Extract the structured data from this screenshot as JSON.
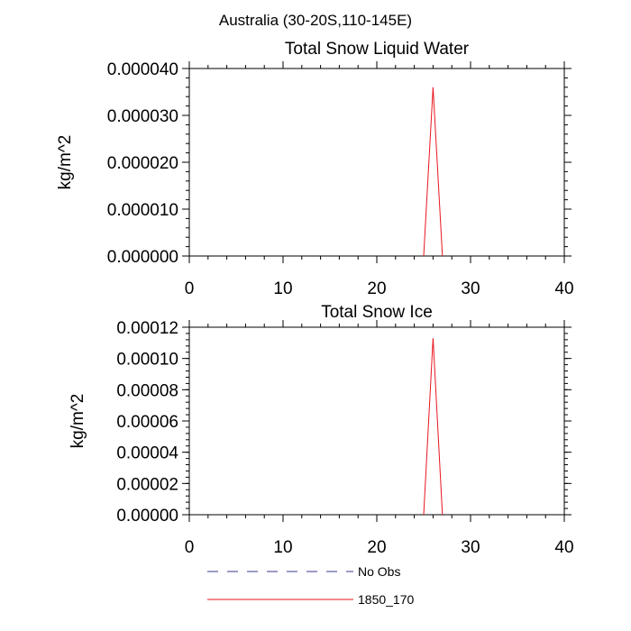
{
  "suptitle": "Australia (30-20S,110-145E)",
  "chart_data": [
    {
      "type": "line",
      "title": "Total Snow Liquid Water",
      "ylabel": "kg/m^2",
      "xlabel": "",
      "xlim": [
        0,
        40
      ],
      "ylim": [
        0,
        4e-05
      ],
      "xticks": [
        0,
        10,
        20,
        30,
        40
      ],
      "xtick_labels": [
        "0",
        "10",
        "20",
        "30",
        "40"
      ],
      "yticks": [
        0,
        1e-05,
        2e-05,
        3e-05,
        4e-05
      ],
      "ytick_labels": [
        "0.000000",
        "0.000010",
        "0.000020",
        "0.000030",
        "0.000040"
      ],
      "series": [
        {
          "name": "1850_170",
          "color": "#e8161e",
          "x": [
            25,
            26,
            27
          ],
          "y": [
            0,
            3.6e-05,
            0
          ]
        }
      ]
    },
    {
      "type": "line",
      "title": "Total Snow Ice",
      "ylabel": "kg/m^2",
      "xlabel": "",
      "xlim": [
        0,
        40
      ],
      "ylim": [
        0,
        0.00012
      ],
      "xticks": [
        0,
        10,
        20,
        30,
        40
      ],
      "xtick_labels": [
        "0",
        "10",
        "20",
        "30",
        "40"
      ],
      "yticks": [
        0,
        2e-05,
        4e-05,
        6e-05,
        8e-05,
        0.0001,
        0.00012
      ],
      "ytick_labels": [
        "0.00000",
        "0.00002",
        "0.00004",
        "0.00006",
        "0.00008",
        "0.00010",
        "0.00012"
      ],
      "series": [
        {
          "name": "1850_170",
          "color": "#e8161e",
          "x": [
            25,
            26,
            27
          ],
          "y": [
            0,
            0.000113,
            0
          ]
        }
      ]
    }
  ],
  "legend": [
    {
      "label": "No Obs",
      "color": "#3a3a8c",
      "style": "dashed"
    },
    {
      "label": "1850_170",
      "color": "#e8161e",
      "style": "solid"
    }
  ]
}
